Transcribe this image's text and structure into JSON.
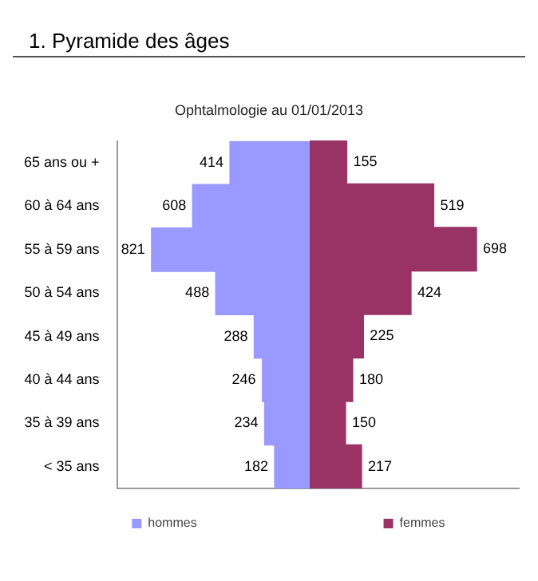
{
  "chart_data": [
    {
      "type": "bar",
      "title": "1. Pyramide des âges",
      "subtitle": "Ophtalmologie au 01/01/2013",
      "orientation": "horizontal",
      "legend": "bottom",
      "tick_labels": "y",
      "xlim": [
        1000,
        0
      ],
      "categories": [
        "65 ans ou +",
        "60 à 64 ans",
        "55 à 59 ans",
        "50 à 54 ans",
        "45 à 49 ans",
        "40 à 44 ans",
        "35 à 39 ans",
        "< 35 ans"
      ],
      "series": [
        {
          "name": "hommes",
          "color": "#9999ff",
          "values": [
            414,
            608,
            821,
            488,
            288,
            246,
            234,
            182
          ]
        }
      ],
      "data_labels": true
    },
    {
      "type": "bar",
      "orientation": "horizontal",
      "legend": "bottom",
      "tick_labels": false,
      "xlim": [
        0,
        875
      ],
      "series": [
        {
          "name": "femmes",
          "color": "#993366",
          "values": [
            155,
            519,
            698,
            424,
            225,
            180,
            150,
            217
          ]
        }
      ],
      "data_labels": true
    }
  ]
}
